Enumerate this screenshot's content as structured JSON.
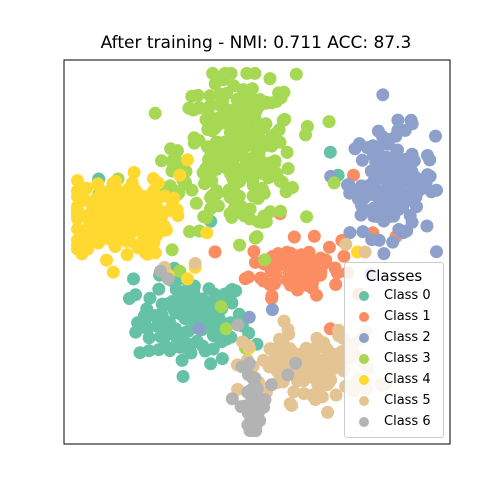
{
  "chart_data": {
    "type": "scatter",
    "title": "After training - NMI: 0.711 ACC: 87.3",
    "xlabel": "",
    "ylabel": "",
    "grid": false,
    "axes_ticks": false,
    "legend": {
      "title": "Classes",
      "placement": "lower-right"
    },
    "xlim": [
      0,
      10
    ],
    "ylim": [
      0,
      10
    ],
    "series": [
      {
        "name": "Class 0",
        "color": "#66c2a5",
        "clusters": [
          {
            "cx": 3.3,
            "cy": 3.2,
            "sx": 0.7,
            "sy": 0.55,
            "n": 130
          }
        ],
        "points": [
          [
            0.9,
            6.9
          ],
          [
            3.2,
            2.6
          ],
          [
            1.8,
            4.3
          ],
          [
            7.1,
            7.0
          ],
          [
            6.9,
            7.6
          ],
          [
            3.8,
            5.8
          ],
          [
            5.0,
            2.6
          ],
          [
            1.2,
            6.6
          ]
        ]
      },
      {
        "name": "Class 1",
        "color": "#fc8d62",
        "clusters": [
          {
            "cx": 6.0,
            "cy": 4.6,
            "sx": 0.6,
            "sy": 0.35,
            "n": 90
          }
        ],
        "points": [
          [
            7.5,
            7.0
          ],
          [
            8.0,
            5.5
          ],
          [
            5.6,
            6.0
          ],
          [
            7.2,
            5.3
          ],
          [
            8.6,
            5.4
          ],
          [
            6.9,
            3.0
          ]
        ]
      },
      {
        "name": "Class 2",
        "color": "#8da0cb",
        "clusters": [
          {
            "cx": 8.5,
            "cy": 6.8,
            "sx": 0.55,
            "sy": 0.7,
            "n": 150
          }
        ],
        "points": [
          [
            5.4,
            3.5
          ],
          [
            4.8,
            3.3
          ],
          [
            3.5,
            3.0
          ],
          [
            5.0,
            8.8
          ],
          [
            4.5,
            8.2
          ]
        ]
      },
      {
        "name": "Class 3",
        "color": "#a6d854",
        "clusters": [
          {
            "cx": 4.5,
            "cy": 7.6,
            "sx": 0.75,
            "sy": 1.0,
            "n": 260
          },
          {
            "cx": 3.0,
            "cy": 7.0,
            "sx": 0.3,
            "sy": 0.35,
            "n": 15
          }
        ],
        "points": [
          [
            0.9,
            6.5
          ],
          [
            1.4,
            6.9
          ],
          [
            5.2,
            4.8
          ],
          [
            5.0,
            5.4
          ],
          [
            3.0,
            4.5
          ],
          [
            4.2,
            3.0
          ],
          [
            4.7,
            2.5
          ],
          [
            7.0,
            6.8
          ],
          [
            4.0,
            6.2
          ],
          [
            4.3,
            6.0
          ]
        ]
      },
      {
        "name": "Class 4",
        "color": "#ffd92f",
        "clusters": [
          {
            "cx": 1.4,
            "cy": 5.9,
            "sx": 0.65,
            "sy": 0.5,
            "n": 200
          }
        ],
        "points": [
          [
            3.2,
            7.4
          ],
          [
            3.7,
            5.5
          ],
          [
            3.4,
            4.6
          ],
          [
            3.2,
            4.3
          ],
          [
            4.8,
            2.5
          ],
          [
            5.6,
            2.4
          ],
          [
            6.5,
            1.8
          ],
          [
            7.6,
            5.0
          ],
          [
            2.7,
            4.4
          ],
          [
            3.0,
            7.0
          ]
        ]
      },
      {
        "name": "Class 5",
        "color": "#e5c494",
        "clusters": [
          {
            "cx": 6.4,
            "cy": 2.0,
            "sx": 0.85,
            "sy": 0.45,
            "n": 130
          }
        ],
        "points": [
          [
            7.3,
            5.2
          ],
          [
            7.8,
            5.0
          ],
          [
            2.6,
            4.6
          ],
          [
            3.4,
            4.7
          ],
          [
            5.7,
            3.2
          ]
        ]
      },
      {
        "name": "Class 6",
        "color": "#b3b3b3",
        "clusters": [
          {
            "cx": 4.9,
            "cy": 1.0,
            "sx": 0.18,
            "sy": 0.45,
            "n": 45
          }
        ],
        "points": [
          [
            2.5,
            4.5
          ],
          [
            2.7,
            4.3
          ],
          [
            4.8,
            2.1
          ],
          [
            4.9,
            1.7
          ],
          [
            5.8,
            1.8
          ],
          [
            6.0,
            2.1
          ],
          [
            4.5,
            3.1
          ]
        ]
      }
    ]
  }
}
